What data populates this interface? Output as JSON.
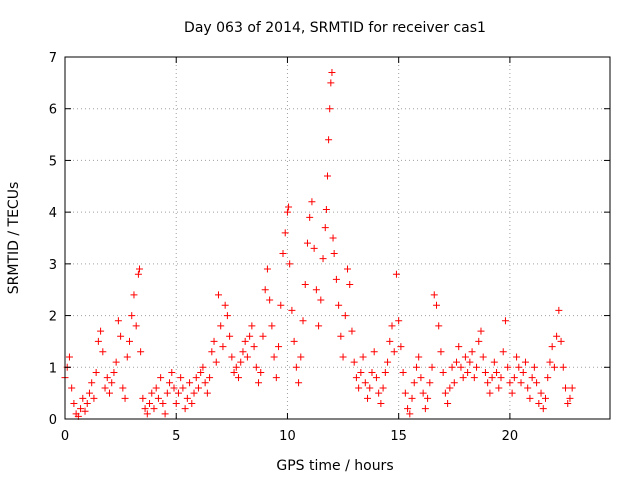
{
  "chart_data": {
    "type": "scatter",
    "title": "Day 063 of 2014, SRMTID for receiver cas1",
    "xlabel": "GPS time / hours",
    "ylabel": "SRMTID / TECUs",
    "xlim": [
      0,
      24.5
    ],
    "ylim": [
      0,
      7
    ],
    "xticks": [
      0,
      5,
      10,
      15,
      20
    ],
    "yticks": [
      0,
      1,
      2,
      3,
      4,
      5,
      6,
      7
    ],
    "grid": true,
    "marker": "+",
    "color": "#ff0000",
    "series": [
      {
        "name": "SRMTID",
        "points": [
          [
            0.0,
            0.8
          ],
          [
            0.1,
            1.0
          ],
          [
            0.2,
            1.2
          ],
          [
            0.3,
            0.6
          ],
          [
            0.4,
            0.3
          ],
          [
            0.5,
            0.1
          ],
          [
            0.6,
            0.05
          ],
          [
            0.7,
            0.2
          ],
          [
            0.8,
            0.4
          ],
          [
            0.9,
            0.15
          ],
          [
            1.0,
            0.3
          ],
          [
            1.1,
            0.5
          ],
          [
            1.2,
            0.7
          ],
          [
            1.3,
            0.4
          ],
          [
            1.4,
            0.9
          ],
          [
            1.5,
            1.5
          ],
          [
            1.6,
            1.7
          ],
          [
            1.7,
            1.3
          ],
          [
            1.8,
            0.6
          ],
          [
            1.9,
            0.8
          ],
          [
            2.0,
            0.5
          ],
          [
            2.1,
            0.7
          ],
          [
            2.2,
            0.9
          ],
          [
            2.3,
            1.1
          ],
          [
            2.4,
            1.9
          ],
          [
            2.5,
            1.6
          ],
          [
            2.6,
            0.6
          ],
          [
            2.7,
            0.4
          ],
          [
            2.8,
            1.2
          ],
          [
            2.9,
            1.5
          ],
          [
            3.0,
            2.0
          ],
          [
            3.1,
            2.4
          ],
          [
            3.2,
            1.8
          ],
          [
            3.3,
            2.8
          ],
          [
            3.35,
            2.9
          ],
          [
            3.4,
            1.3
          ],
          [
            3.5,
            0.4
          ],
          [
            3.6,
            0.2
          ],
          [
            3.7,
            0.1
          ],
          [
            3.8,
            0.3
          ],
          [
            3.9,
            0.5
          ],
          [
            4.0,
            0.2
          ],
          [
            4.1,
            0.6
          ],
          [
            4.2,
            0.4
          ],
          [
            4.3,
            0.8
          ],
          [
            4.4,
            0.3
          ],
          [
            4.5,
            0.1
          ],
          [
            4.6,
            0.5
          ],
          [
            4.7,
            0.7
          ],
          [
            4.8,
            0.9
          ],
          [
            4.9,
            0.6
          ],
          [
            5.0,
            0.3
          ],
          [
            5.1,
            0.5
          ],
          [
            5.2,
            0.8
          ],
          [
            5.3,
            0.6
          ],
          [
            5.4,
            0.2
          ],
          [
            5.5,
            0.4
          ],
          [
            5.6,
            0.7
          ],
          [
            5.7,
            0.3
          ],
          [
            5.8,
            0.5
          ],
          [
            5.9,
            0.8
          ],
          [
            6.0,
            0.6
          ],
          [
            6.1,
            0.9
          ],
          [
            6.2,
            1.0
          ],
          [
            6.3,
            0.7
          ],
          [
            6.4,
            0.5
          ],
          [
            6.5,
            0.8
          ],
          [
            6.6,
            1.3
          ],
          [
            6.7,
            1.5
          ],
          [
            6.8,
            1.1
          ],
          [
            6.9,
            2.4
          ],
          [
            7.0,
            1.8
          ],
          [
            7.1,
            1.4
          ],
          [
            7.2,
            2.2
          ],
          [
            7.3,
            2.0
          ],
          [
            7.4,
            1.6
          ],
          [
            7.5,
            1.2
          ],
          [
            7.6,
            0.9
          ],
          [
            7.7,
            1.0
          ],
          [
            7.8,
            0.8
          ],
          [
            7.9,
            1.1
          ],
          [
            8.0,
            1.3
          ],
          [
            8.1,
            1.5
          ],
          [
            8.2,
            1.2
          ],
          [
            8.3,
            1.6
          ],
          [
            8.4,
            1.8
          ],
          [
            8.5,
            1.4
          ],
          [
            8.6,
            1.0
          ],
          [
            8.7,
            0.7
          ],
          [
            8.8,
            0.9
          ],
          [
            8.9,
            1.6
          ],
          [
            9.0,
            2.5
          ],
          [
            9.1,
            2.9
          ],
          [
            9.2,
            2.3
          ],
          [
            9.3,
            1.8
          ],
          [
            9.4,
            1.2
          ],
          [
            9.5,
            0.8
          ],
          [
            9.6,
            1.4
          ],
          [
            9.7,
            2.2
          ],
          [
            9.8,
            3.2
          ],
          [
            9.9,
            3.6
          ],
          [
            10.0,
            4.0
          ],
          [
            10.05,
            4.1
          ],
          [
            10.1,
            3.0
          ],
          [
            10.2,
            2.1
          ],
          [
            10.3,
            1.5
          ],
          [
            10.4,
            1.0
          ],
          [
            10.5,
            0.7
          ],
          [
            10.6,
            1.2
          ],
          [
            10.7,
            1.9
          ],
          [
            10.8,
            2.6
          ],
          [
            10.9,
            3.4
          ],
          [
            11.0,
            3.9
          ],
          [
            11.1,
            4.2
          ],
          [
            11.2,
            3.3
          ],
          [
            11.3,
            2.5
          ],
          [
            11.4,
            1.8
          ],
          [
            11.5,
            2.3
          ],
          [
            11.6,
            3.1
          ],
          [
            11.7,
            3.7
          ],
          [
            11.75,
            4.05
          ],
          [
            11.8,
            4.7
          ],
          [
            11.85,
            5.4
          ],
          [
            11.9,
            6.0
          ],
          [
            11.95,
            6.5
          ],
          [
            12.0,
            6.7
          ],
          [
            12.05,
            3.5
          ],
          [
            12.1,
            3.2
          ],
          [
            12.2,
            2.7
          ],
          [
            12.3,
            2.2
          ],
          [
            12.4,
            1.6
          ],
          [
            12.5,
            1.2
          ],
          [
            12.6,
            2.0
          ],
          [
            12.7,
            2.9
          ],
          [
            12.8,
            2.6
          ],
          [
            12.9,
            1.7
          ],
          [
            13.0,
            1.1
          ],
          [
            13.1,
            0.8
          ],
          [
            13.2,
            0.6
          ],
          [
            13.3,
            0.9
          ],
          [
            13.4,
            1.2
          ],
          [
            13.5,
            0.7
          ],
          [
            13.6,
            0.4
          ],
          [
            13.7,
            0.6
          ],
          [
            13.8,
            0.9
          ],
          [
            13.9,
            1.3
          ],
          [
            14.0,
            0.8
          ],
          [
            14.1,
            0.5
          ],
          [
            14.2,
            0.3
          ],
          [
            14.3,
            0.6
          ],
          [
            14.4,
            0.9
          ],
          [
            14.5,
            1.1
          ],
          [
            14.6,
            1.5
          ],
          [
            14.7,
            1.8
          ],
          [
            14.8,
            1.3
          ],
          [
            14.9,
            2.8
          ],
          [
            15.0,
            1.9
          ],
          [
            15.1,
            1.4
          ],
          [
            15.2,
            0.9
          ],
          [
            15.3,
            0.5
          ],
          [
            15.4,
            0.2
          ],
          [
            15.5,
            0.1
          ],
          [
            15.6,
            0.4
          ],
          [
            15.7,
            0.7
          ],
          [
            15.8,
            1.0
          ],
          [
            15.9,
            1.2
          ],
          [
            16.0,
            0.8
          ],
          [
            16.1,
            0.5
          ],
          [
            16.2,
            0.2
          ],
          [
            16.3,
            0.4
          ],
          [
            16.4,
            0.7
          ],
          [
            16.5,
            1.0
          ],
          [
            16.6,
            2.4
          ],
          [
            16.7,
            2.2
          ],
          [
            16.8,
            1.8
          ],
          [
            16.9,
            1.3
          ],
          [
            17.0,
            0.9
          ],
          [
            17.1,
            0.5
          ],
          [
            17.2,
            0.3
          ],
          [
            17.3,
            0.6
          ],
          [
            17.4,
            1.0
          ],
          [
            17.5,
            0.7
          ],
          [
            17.6,
            1.1
          ],
          [
            17.7,
            1.4
          ],
          [
            17.8,
            1.0
          ],
          [
            17.9,
            0.8
          ],
          [
            18.0,
            1.2
          ],
          [
            18.1,
            0.9
          ],
          [
            18.2,
            1.1
          ],
          [
            18.3,
            1.3
          ],
          [
            18.4,
            0.8
          ],
          [
            18.5,
            1.0
          ],
          [
            18.6,
            1.5
          ],
          [
            18.7,
            1.7
          ],
          [
            18.8,
            1.2
          ],
          [
            18.9,
            0.9
          ],
          [
            19.0,
            0.7
          ],
          [
            19.1,
            0.5
          ],
          [
            19.2,
            0.8
          ],
          [
            19.3,
            1.1
          ],
          [
            19.4,
            0.9
          ],
          [
            19.5,
            0.6
          ],
          [
            19.6,
            0.8
          ],
          [
            19.7,
            1.3
          ],
          [
            19.8,
            1.9
          ],
          [
            19.9,
            1.0
          ],
          [
            20.0,
            0.7
          ],
          [
            20.1,
            0.5
          ],
          [
            20.2,
            0.8
          ],
          [
            20.3,
            1.2
          ],
          [
            20.4,
            1.0
          ],
          [
            20.5,
            0.7
          ],
          [
            20.6,
            0.9
          ],
          [
            20.7,
            1.1
          ],
          [
            20.8,
            0.6
          ],
          [
            20.9,
            0.4
          ],
          [
            21.0,
            0.8
          ],
          [
            21.1,
            1.0
          ],
          [
            21.2,
            0.7
          ],
          [
            21.3,
            0.3
          ],
          [
            21.4,
            0.5
          ],
          [
            21.5,
            0.2
          ],
          [
            21.6,
            0.4
          ],
          [
            21.7,
            0.8
          ],
          [
            21.8,
            1.1
          ],
          [
            21.9,
            1.4
          ],
          [
            22.0,
            1.0
          ],
          [
            22.1,
            1.6
          ],
          [
            22.2,
            2.1
          ],
          [
            22.3,
            1.5
          ],
          [
            22.4,
            1.0
          ],
          [
            22.5,
            0.6
          ],
          [
            22.6,
            0.3
          ],
          [
            22.7,
            0.4
          ],
          [
            22.8,
            0.6
          ]
        ]
      }
    ]
  }
}
